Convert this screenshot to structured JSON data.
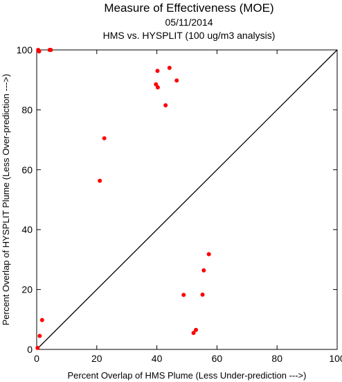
{
  "chart_data": {
    "type": "scatter",
    "title": "Measure of Effectiveness (MOE)",
    "subtitle_lines": [
      "05/11/2014",
      "HMS vs. HYSPLIT  (100 ug/m3 analysis)"
    ],
    "xlabel": "Percent Overlap of HMS Plume (Less Under-prediction --->)",
    "ylabel": "Percent Overlap of HYSPLIT Plume (Less Over-prediction --->)",
    "xlim": [
      0,
      100
    ],
    "ylim": [
      0,
      100
    ],
    "xticks": [
      0,
      20,
      40,
      60,
      80,
      100
    ],
    "yticks": [
      0,
      20,
      40,
      60,
      80,
      100
    ],
    "grid": false,
    "reference_line": {
      "from": [
        0,
        0
      ],
      "to": [
        100,
        100
      ],
      "color": "#000000"
    },
    "point_color": "#ff0000",
    "points": [
      {
        "x": 0.5,
        "y": 100.0
      },
      {
        "x": 0.8,
        "y": 99.5
      },
      {
        "x": 4.3,
        "y": 100.0
      },
      {
        "x": 4.7,
        "y": 100.0
      },
      {
        "x": 40.2,
        "y": 93.0
      },
      {
        "x": 44.2,
        "y": 94.0
      },
      {
        "x": 39.7,
        "y": 88.5
      },
      {
        "x": 40.3,
        "y": 87.5
      },
      {
        "x": 46.6,
        "y": 89.8
      },
      {
        "x": 42.9,
        "y": 81.5
      },
      {
        "x": 22.5,
        "y": 70.5
      },
      {
        "x": 21.0,
        "y": 56.3
      },
      {
        "x": 57.3,
        "y": 31.8
      },
      {
        "x": 55.6,
        "y": 26.4
      },
      {
        "x": 48.9,
        "y": 18.2
      },
      {
        "x": 55.2,
        "y": 18.3
      },
      {
        "x": 53.0,
        "y": 6.5
      },
      {
        "x": 52.2,
        "y": 5.5
      },
      {
        "x": 1.8,
        "y": 9.8
      },
      {
        "x": 1.0,
        "y": 4.5
      },
      {
        "x": 0.3,
        "y": 0.5
      }
    ]
  }
}
